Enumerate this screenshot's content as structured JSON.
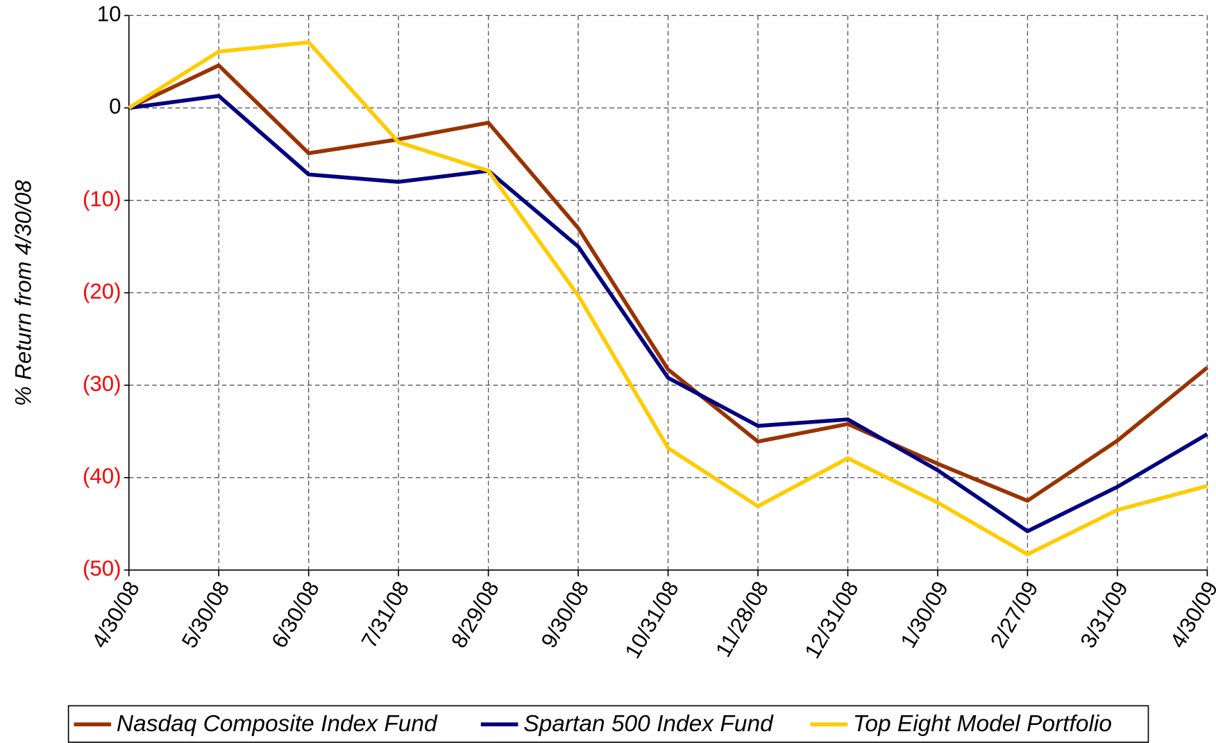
{
  "chart_data": {
    "type": "line",
    "y_label": "% Return from 4/30/08",
    "categories": [
      "4/30/08",
      "5/30/08",
      "6/30/08",
      "7/31/08",
      "8/29/08",
      "9/30/08",
      "10/31/08",
      "11/28/08",
      "12/31/08",
      "1/30/09",
      "2/27/09",
      "3/31/09",
      "4/30/09"
    ],
    "series": [
      {
        "name": "Nasdaq Composite Index Fund",
        "color": "#993300",
        "values": [
          0,
          4.6,
          -4.9,
          -3.4,
          -1.6,
          -13,
          -28.3,
          -36.1,
          -34.2,
          -38.5,
          -42.5,
          -36,
          -28.1
        ]
      },
      {
        "name": "Spartan 500 Index Fund",
        "color": "#000080",
        "values": [
          0,
          1.3,
          -7.2,
          -8,
          -6.8,
          -15,
          -29.2,
          -34.4,
          -33.7,
          -39.2,
          -45.8,
          -41,
          -35.3
        ]
      },
      {
        "name": "Top Eight Model Portfolio",
        "color": "#ffcc00",
        "values": [
          0,
          6.1,
          7.1,
          -3.7,
          -6.8,
          -20.3,
          -36.8,
          -43.1,
          -37.9,
          -42.7,
          -48.3,
          -43.5,
          -40.9
        ]
      }
    ],
    "ylim": [
      -50,
      10
    ],
    "yticks": [
      10,
      0,
      {
        "value": -10,
        "label": "(10)"
      },
      {
        "value": -20,
        "label": "(20)"
      },
      {
        "value": -30,
        "label": "(30)"
      },
      {
        "value": -40,
        "label": "(40)"
      },
      {
        "value": -50,
        "label": "(50)"
      }
    ],
    "negative_tick_color": "#ff0000",
    "grid": true,
    "legend": "bottom"
  }
}
